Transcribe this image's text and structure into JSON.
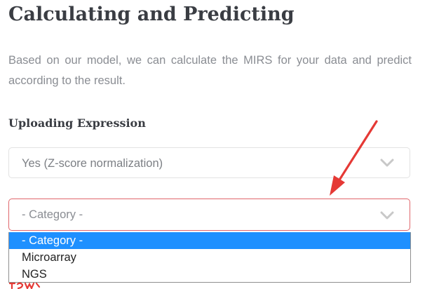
{
  "page": {
    "title": "Calculating and Predicting",
    "description": "Based on our model, we can calculate the MIRS for your data and predict according to the result.",
    "section_heading": "Uploading Expression"
  },
  "normalization_select": {
    "selected_value": "Yes (Z-score normalization)"
  },
  "category_select": {
    "selected_value": "- Category -",
    "options": [
      "- Category -",
      "Microarray",
      "NGS"
    ],
    "highlighted_option": "- Category -"
  },
  "colors": {
    "heading_text": "#3a3d43",
    "body_text": "#8a8d93",
    "invalid_border": "#e0666b",
    "option_highlight": "#1e90ff",
    "annotation_arrow": "#e53935"
  },
  "icons": {
    "select_chevron": "chevron-down-icon",
    "annotation": "red-arrow-icon"
  }
}
